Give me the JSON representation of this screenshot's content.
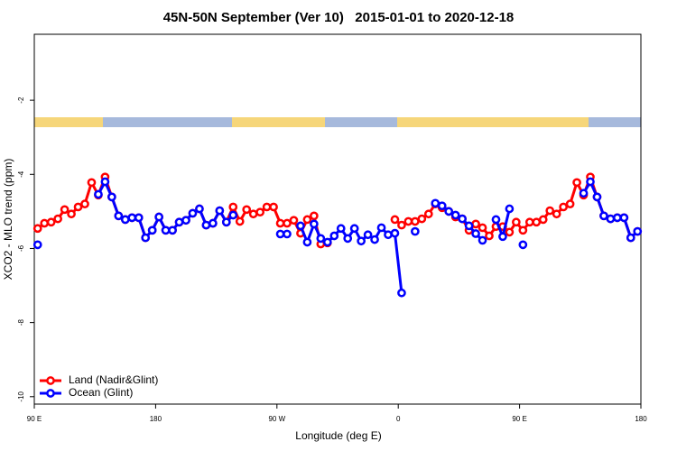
{
  "chart_data": {
    "type": "line",
    "title": "45N-50N September (Ver 10)   2015-01-01 to 2020-12-18",
    "x_label": "Longitude (deg E)",
    "y_label": "XCO2 - MLO trend (ppm)",
    "x": [
      92.5,
      97.5,
      102.5,
      107.5,
      112.5,
      117.5,
      122.5,
      127.5,
      132.5,
      137.5,
      142.5,
      147.5,
      152.5,
      157.5,
      162.5,
      167.5,
      172.5,
      177.5,
      182.5,
      187.5,
      192.5,
      197.5,
      202.5,
      207.5,
      212.5,
      217.5,
      222.5,
      227.5,
      232.5,
      237.5,
      242.5,
      247.5,
      252.5,
      257.5,
      262.5,
      267.5,
      272.5,
      277.5,
      282.5,
      287.5,
      292.5,
      297.5,
      302.5,
      307.5,
      312.5,
      317.5,
      322.5,
      327.5,
      332.5,
      337.5,
      342.5,
      347.5,
      352.5,
      357.5,
      362.5,
      367.5,
      372.5,
      377.5,
      382.5,
      387.5,
      392.5,
      397.5,
      402.5,
      407.5,
      412.5,
      417.5,
      422.5,
      427.5,
      432.5,
      437.5,
      442.5,
      447.5,
      452.5,
      457.5,
      462.5,
      467.5,
      472.5,
      477.5,
      482.5,
      487.5,
      492.5,
      497.5,
      502.5,
      507.5,
      512.5,
      517.5,
      522.5,
      527.5,
      532.5,
      537.5
    ],
    "series": [
      {
        "name": "Land (Nadir&Glint)",
        "color": "#ff0000",
        "values": [
          -5.46,
          -5.32,
          -5.29,
          -5.2,
          -4.95,
          -5.07,
          -4.88,
          -4.8,
          -4.22,
          -4.56,
          -4.07,
          -4.61,
          -5.12,
          -5.22,
          -5.17,
          -5.17,
          -5.71,
          -5.51,
          -5.15,
          -5.51,
          -5.51,
          -5.29,
          -5.24,
          -5.05,
          -4.93,
          -5.37,
          -5.32,
          -4.98,
          -5.29,
          -4.88,
          -5.27,
          -4.95,
          -5.07,
          -5.02,
          -4.88,
          -4.88,
          -5.32,
          -5.32,
          -5.24,
          -5.59,
          -5.22,
          -5.12,
          -5.88,
          -5.85,
          null,
          null,
          null,
          null,
          null,
          null,
          null,
          null,
          null,
          -5.22,
          -5.37,
          -5.27,
          -5.27,
          -5.2,
          -5.07,
          -4.8,
          -4.9,
          -5.0,
          -5.15,
          -5.2,
          -5.51,
          -5.34,
          -5.44,
          -5.66,
          -5.41,
          -5.41,
          -5.56,
          -5.29,
          -5.51,
          -5.29,
          -5.29,
          -5.22,
          -4.98,
          -5.07,
          -4.88,
          -4.8,
          -4.22,
          -4.56,
          -4.07,
          -4.61,
          -5.12,
          -5.2,
          -5.17,
          -5.17,
          -5.71,
          -5.54
        ]
      },
      {
        "name": "Ocean (Glint)",
        "color": "#0000ff",
        "values": [
          -5.9,
          null,
          null,
          null,
          null,
          null,
          null,
          null,
          null,
          -4.54,
          -4.2,
          -4.61,
          -5.12,
          -5.22,
          -5.17,
          -5.17,
          -5.71,
          -5.51,
          -5.15,
          -5.51,
          -5.51,
          -5.29,
          -5.24,
          -5.05,
          -4.93,
          -5.37,
          -5.32,
          -4.98,
          -5.29,
          -5.1,
          null,
          null,
          null,
          null,
          null,
          null,
          -5.61,
          -5.61,
          null,
          -5.39,
          -5.83,
          -5.34,
          -5.73,
          -5.83,
          -5.66,
          -5.46,
          -5.73,
          -5.46,
          -5.8,
          -5.63,
          -5.76,
          -5.44,
          -5.63,
          -5.59,
          -7.2,
          null,
          -5.54,
          null,
          null,
          -4.78,
          -4.85,
          -5.0,
          -5.1,
          -5.2,
          -5.39,
          -5.6,
          -5.78,
          null,
          -5.22,
          -5.68,
          -4.93,
          null,
          -5.9,
          null,
          null,
          null,
          null,
          null,
          null,
          null,
          null,
          -4.51,
          -4.2,
          -4.61,
          -5.12,
          -5.2,
          -5.17,
          -5.17,
          -5.71,
          -5.54
        ]
      }
    ],
    "xlim": [
      90,
      540
    ],
    "xticks": [
      {
        "value": 90,
        "label": "90 E"
      },
      {
        "value": 180,
        "label": "180"
      },
      {
        "value": 270,
        "label": "90 W"
      },
      {
        "value": 360,
        "label": "0"
      },
      {
        "value": 450,
        "label": "90 E"
      },
      {
        "value": 540,
        "label": "180"
      }
    ],
    "ylim": [
      -10.2,
      -0.22
    ],
    "yticks": [
      -10,
      -8,
      -6,
      -4,
      -2
    ],
    "grid": false,
    "legend": "bottom-left"
  }
}
